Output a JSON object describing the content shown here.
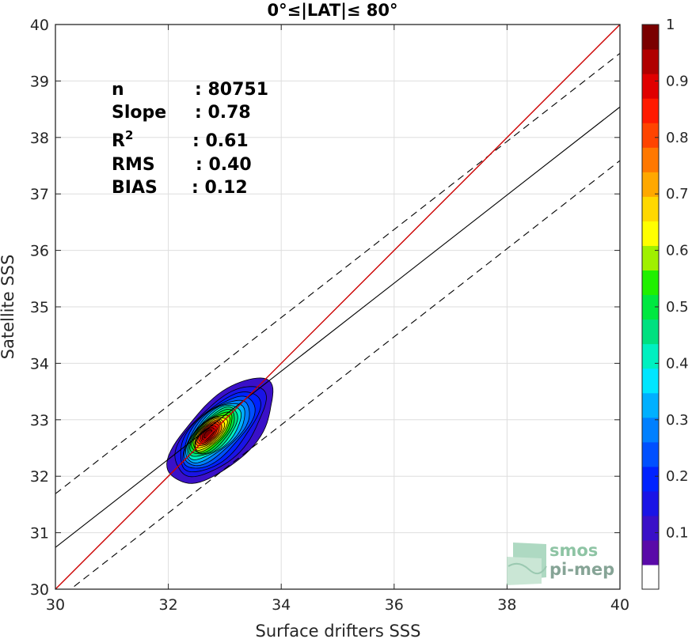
{
  "chart_data": {
    "type": "scatter",
    "title": "0°≤|LAT|≤ 80°",
    "xlabel": "Surface drifters SSS",
    "ylabel": "Satellite SSS",
    "xlim": [
      30,
      40
    ],
    "ylim": [
      30,
      40
    ],
    "xticks": [
      "30",
      "32",
      "34",
      "36",
      "38",
      "40"
    ],
    "yticks": [
      "30",
      "31",
      "32",
      "33",
      "34",
      "35",
      "36",
      "37",
      "38",
      "39",
      "40"
    ],
    "grid": true,
    "stats": [
      {
        "name": "n",
        "sep": ": ",
        "value": "80751"
      },
      {
        "name": "Slope",
        "sep": ": ",
        "value": "0.78"
      },
      {
        "name": "R",
        "sup": "2",
        "sep": ": ",
        "value": "0.61"
      },
      {
        "name": "RMS",
        "sep": ": ",
        "value": "0.40"
      },
      {
        "name": "BIAS",
        "sep": ": ",
        "value": "0.12"
      }
    ],
    "lines": {
      "identity": {
        "slope": 1,
        "intercept": 0,
        "color": "#cc0000"
      },
      "regression": {
        "slope": 0.78,
        "intercept": 7.34,
        "color": "#000000"
      },
      "upper_bound": {
        "slope": 0.78,
        "intercept": 8.29,
        "style": "dashed"
      },
      "lower_bound": {
        "slope": 0.78,
        "intercept": 6.39,
        "style": "dashed"
      }
    },
    "density_contours": {
      "center": [
        32.7,
        32.75
      ],
      "levels": [
        0.05,
        0.1,
        0.15,
        0.2,
        0.25,
        0.3,
        0.35,
        0.4,
        0.45,
        0.5,
        0.55,
        0.6,
        0.65,
        0.7,
        0.75,
        0.8,
        0.85,
        0.9,
        0.95
      ]
    },
    "colorbar": {
      "range": [
        0,
        1
      ],
      "ticks": [
        "0.1",
        "0.2",
        "0.3",
        "0.4",
        "0.5",
        "0.6",
        "0.7",
        "0.8",
        "0.9",
        "1"
      ],
      "colors": [
        "#ffffff",
        "#5a0aa8",
        "#3a10c8",
        "#1a14e6",
        "#0022ff",
        "#0050ff",
        "#0080ff",
        "#00b0ff",
        "#00e6ff",
        "#00f0c0",
        "#00e080",
        "#00e840",
        "#20f000",
        "#a0f000",
        "#ffff00",
        "#ffd800",
        "#ffa800",
        "#ff7800",
        "#ff4400",
        "#ff1a00",
        "#e00000",
        "#b00000",
        "#7a0000"
      ]
    }
  },
  "logo": {
    "line1": "smos",
    "line2": "pi-mep"
  }
}
